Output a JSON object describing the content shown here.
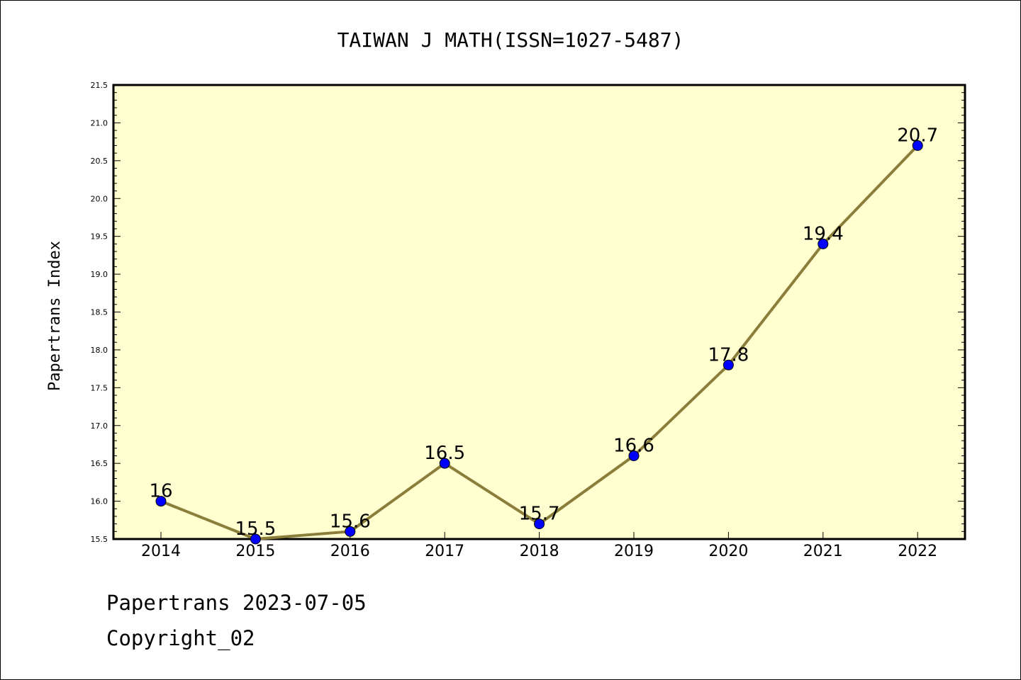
{
  "chart_data": {
    "type": "line",
    "title": "TAIWAN J MATH(ISSN=1027-5487)",
    "xlabel": "",
    "ylabel": "Papertrans Index",
    "categories": [
      "2014",
      "2015",
      "2016",
      "2017",
      "2018",
      "2019",
      "2020",
      "2021",
      "2022"
    ],
    "values": [
      16,
      15.5,
      15.6,
      16.5,
      15.7,
      16.6,
      17.8,
      19.4,
      20.7
    ],
    "data_labels": [
      "16",
      "15.5",
      "15.6",
      "16.5",
      "15.7",
      "16.6",
      "17.8",
      "19.4",
      "20.7"
    ],
    "ylim": [
      15.5,
      21.5
    ],
    "yticks": [
      "15.5",
      "16.0",
      "16.5",
      "17.0",
      "17.5",
      "18.0",
      "18.5",
      "19.0",
      "19.5",
      "20.0",
      "20.5",
      "21.0",
      "21.5"
    ],
    "grid": false,
    "legend": "none",
    "colors": {
      "plot_background": "#ffffd0",
      "line": "#8b7d3a",
      "marker": "#0000ff"
    }
  },
  "footer": {
    "line1": "Papertrans 2023-07-05",
    "line2": "Copyright_02"
  }
}
